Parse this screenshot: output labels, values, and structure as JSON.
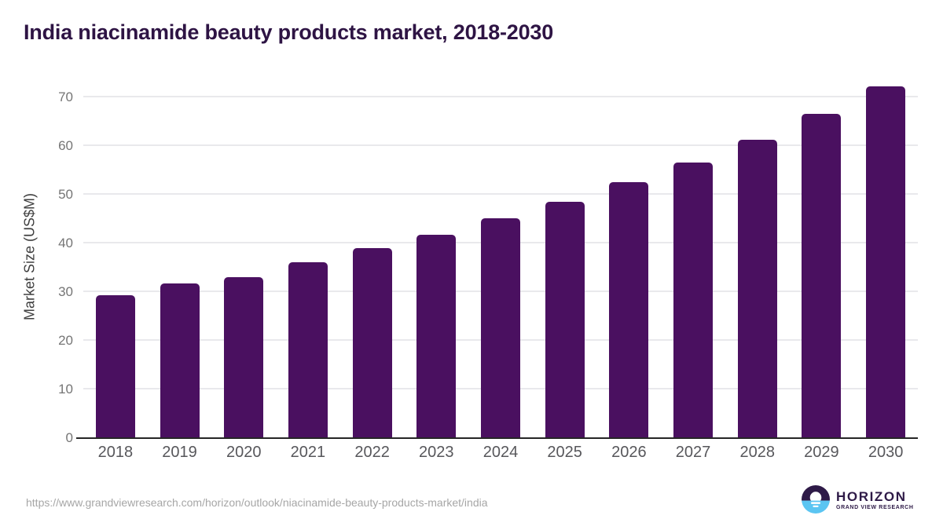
{
  "title": "India niacinamide beauty products market, 2018-2030",
  "chart_data": {
    "type": "bar",
    "title": "India niacinamide beauty products market, 2018-2030",
    "categories": [
      "2018",
      "2019",
      "2020",
      "2021",
      "2022",
      "2023",
      "2024",
      "2025",
      "2026",
      "2027",
      "2028",
      "2029",
      "2030"
    ],
    "values": [
      29.3,
      31.7,
      33.0,
      36.2,
      39.0,
      41.8,
      45.1,
      48.5,
      52.6,
      56.6,
      61.2,
      66.6,
      72.3
    ],
    "xlabel": "",
    "ylabel": "Market Size (US$M)",
    "ylim": [
      0,
      74.5
    ],
    "yticks": [
      0,
      10,
      20,
      30,
      40,
      50,
      60,
      70
    ],
    "grid": true,
    "legend": "none"
  },
  "colors": {
    "bar": "#4a1060",
    "title": "#2e1444",
    "gridline": "#e9e9ec",
    "axis_line": "#262626",
    "y_tick_text": "#757575",
    "x_label_text": "#57575b",
    "url_text": "#a6a6a6",
    "logo_purple": "#2e1a47",
    "logo_blue": "#5bc5f2"
  },
  "footer": {
    "source_url": "https://www.grandviewresearch.com/horizon/outlook/niacinamide-beauty-products-market/india",
    "logo": {
      "brand": "HORIZON",
      "sub_brand": "GRAND VIEW RESEARCH"
    }
  }
}
